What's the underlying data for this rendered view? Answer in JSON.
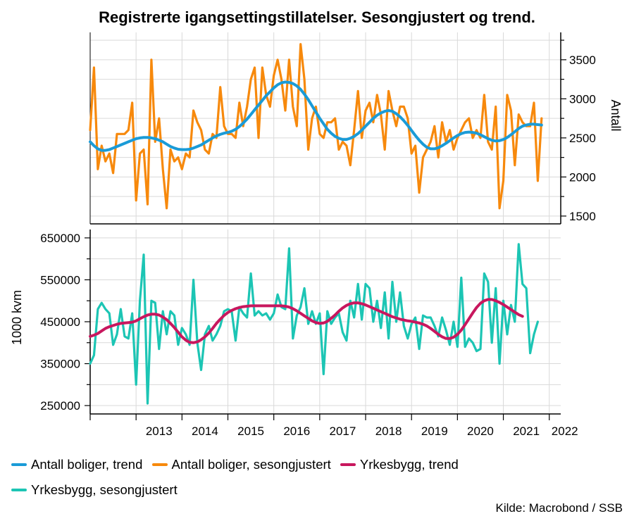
{
  "title": "Registrerte igangsettingstillatelser. Sesongjustert og trend.",
  "source": "Kilde: Macrobond / SSB",
  "colors": {
    "boliger_trend": "#1a9bd7",
    "boliger_sa": "#f7890c",
    "yrkes_trend": "#c8175e",
    "yrkes_sa": "#1cc5b4",
    "grid": "#d9d9d9",
    "axis": "#000000"
  },
  "legend": [
    {
      "label": "Antall boliger, trend",
      "color": "#1a9bd7"
    },
    {
      "label": "Antall boliger, sesongjustert",
      "color": "#f7890c"
    },
    {
      "label": "Yrkesbygg, trend",
      "color": "#c8175e"
    },
    {
      "label": "Yrkesbygg, sesongjustert",
      "color": "#1cc5b4"
    }
  ],
  "chart_data": [
    {
      "type": "line",
      "panel": "top",
      "ylabel": "Antall",
      "y_axis_side": "right",
      "ylim": [
        1400,
        3850
      ],
      "yticks": [
        1500,
        2000,
        2500,
        3000,
        3500
      ],
      "xlim": [
        2012.0,
        2022.25
      ],
      "x_tick_labels": [
        "2013",
        "2014",
        "2015",
        "2016",
        "2017",
        "2018",
        "2019",
        "2020",
        "2021",
        "2022"
      ],
      "x_start": "2012-01",
      "x_step": "month",
      "grid": true,
      "series": [
        {
          "name": "Antall boliger, trend",
          "values": [
            2450,
            2400,
            2360,
            2340,
            2340,
            2350,
            2370,
            2390,
            2410,
            2430,
            2450,
            2470,
            2490,
            2500,
            2505,
            2505,
            2500,
            2490,
            2470,
            2450,
            2420,
            2390,
            2370,
            2355,
            2350,
            2350,
            2355,
            2370,
            2390,
            2410,
            2440,
            2470,
            2500,
            2525,
            2545,
            2560,
            2570,
            2585,
            2610,
            2645,
            2690,
            2740,
            2800,
            2860,
            2920,
            2980,
            3040,
            3090,
            3140,
            3180,
            3205,
            3215,
            3210,
            3195,
            3165,
            3120,
            3060,
            2990,
            2910,
            2830,
            2750,
            2680,
            2610,
            2560,
            2520,
            2495,
            2480,
            2480,
            2495,
            2520,
            2555,
            2600,
            2650,
            2700,
            2750,
            2790,
            2820,
            2840,
            2850,
            2840,
            2810,
            2770,
            2720,
            2660,
            2595,
            2530,
            2470,
            2420,
            2380,
            2360,
            2360,
            2375,
            2400,
            2430,
            2465,
            2500,
            2530,
            2555,
            2570,
            2575,
            2570,
            2560,
            2540,
            2515,
            2490,
            2470,
            2460,
            2465,
            2480,
            2505,
            2540,
            2580,
            2620,
            2650,
            2665,
            2675,
            2675,
            2670,
            2665
          ]
        },
        {
          "name": "Antall boliger, sesongjustert",
          "values": [
            2600,
            3400,
            2100,
            2400,
            2200,
            2300,
            2050,
            2550,
            2550,
            2550,
            2600,
            2950,
            1700,
            2300,
            2350,
            1650,
            3500,
            2450,
            2750,
            2100,
            1600,
            2350,
            2200,
            2250,
            2100,
            2300,
            2250,
            2850,
            2700,
            2600,
            2350,
            2300,
            2550,
            2500,
            3150,
            2650,
            2550,
            2550,
            2500,
            2950,
            2650,
            2900,
            3250,
            3400,
            2500,
            3400,
            3050,
            2900,
            3300,
            3500,
            3250,
            2850,
            3500,
            2900,
            2650,
            3700,
            3250,
            2350,
            2750,
            2900,
            2550,
            2500,
            2700,
            2700,
            2750,
            2350,
            2450,
            2400,
            2150,
            2600,
            3100,
            2500,
            2850,
            2950,
            2700,
            3050,
            2800,
            2350,
            3100,
            2850,
            2650,
            2900,
            2900,
            2750,
            2300,
            2400,
            1800,
            2250,
            2350,
            2450,
            2650,
            2250,
            2700,
            2450,
            2600,
            2350,
            2500,
            2600,
            2700,
            2750,
            2500,
            2600,
            2500,
            3050,
            2450,
            2350,
            2900,
            1600,
            1950,
            3050,
            2850,
            2150,
            2800,
            2700,
            2650,
            2650,
            2950,
            1950,
            2750
          ]
        }
      ]
    },
    {
      "type": "line",
      "panel": "bottom",
      "ylabel": "1000 kvm",
      "y_axis_side": "left",
      "ylim": [
        230000,
        670000
      ],
      "yticks": [
        250000,
        350000,
        450000,
        550000,
        650000
      ],
      "xlim": [
        2012.0,
        2022.25
      ],
      "x_tick_labels": [
        "2013",
        "2014",
        "2015",
        "2016",
        "2017",
        "2018",
        "2019",
        "2020",
        "2021",
        "2022"
      ],
      "x_start": "2012-01",
      "x_step": "month",
      "grid": true,
      "series": [
        {
          "name": "Yrkesbygg, trend",
          "values": [
            415000,
            418000,
            422000,
            428000,
            434000,
            438000,
            441000,
            444000,
            446000,
            447000,
            448000,
            449000,
            452000,
            457000,
            462000,
            466000,
            468000,
            468000,
            466000,
            461000,
            455000,
            446000,
            436000,
            425000,
            414000,
            406000,
            401000,
            400000,
            402000,
            407000,
            414000,
            423000,
            434000,
            446000,
            456000,
            465000,
            472000,
            477000,
            481000,
            484000,
            486000,
            487000,
            488000,
            488000,
            488000,
            488000,
            488000,
            488000,
            488000,
            488000,
            488000,
            487000,
            485000,
            481000,
            476000,
            470000,
            464000,
            458000,
            452000,
            448000,
            446000,
            447000,
            451000,
            458000,
            466000,
            475000,
            483000,
            489000,
            493000,
            495000,
            495000,
            493000,
            490000,
            486000,
            482000,
            478000,
            474000,
            470000,
            466000,
            462000,
            459000,
            456000,
            454000,
            452000,
            451000,
            449000,
            447000,
            444000,
            440000,
            434000,
            427000,
            420000,
            414000,
            410000,
            410000,
            413000,
            420000,
            430000,
            443000,
            457000,
            471000,
            484000,
            494000,
            500000,
            503000,
            503000,
            500000,
            496000,
            491000,
            485000,
            479000,
            473000,
            467000,
            463000
          ]
        },
        {
          "name": "Yrkesbygg, sesongjustert",
          "values": [
            350000,
            370000,
            480000,
            495000,
            480000,
            470000,
            395000,
            420000,
            480000,
            415000,
            410000,
            470000,
            300000,
            500000,
            610000,
            255000,
            500000,
            495000,
            385000,
            475000,
            420000,
            475000,
            465000,
            395000,
            435000,
            420000,
            395000,
            550000,
            400000,
            335000,
            420000,
            440000,
            405000,
            420000,
            440000,
            475000,
            480000,
            475000,
            405000,
            485000,
            470000,
            460000,
            565000,
            465000,
            475000,
            465000,
            470000,
            455000,
            470000,
            515000,
            485000,
            480000,
            625000,
            410000,
            465000,
            485000,
            530000,
            445000,
            475000,
            445000,
            470000,
            325000,
            475000,
            445000,
            460000,
            470000,
            425000,
            405000,
            500000,
            460000,
            540000,
            455000,
            540000,
            530000,
            450000,
            500000,
            435000,
            520000,
            410000,
            545000,
            450000,
            520000,
            440000,
            410000,
            445000,
            460000,
            385000,
            465000,
            460000,
            460000,
            440000,
            415000,
            460000,
            430000,
            395000,
            450000,
            390000,
            555000,
            390000,
            410000,
            400000,
            380000,
            385000,
            565000,
            545000,
            400000,
            530000,
            350000,
            500000,
            420000,
            490000,
            450000,
            635000,
            540000,
            530000,
            375000,
            420000,
            450000
          ]
        }
      ]
    }
  ]
}
